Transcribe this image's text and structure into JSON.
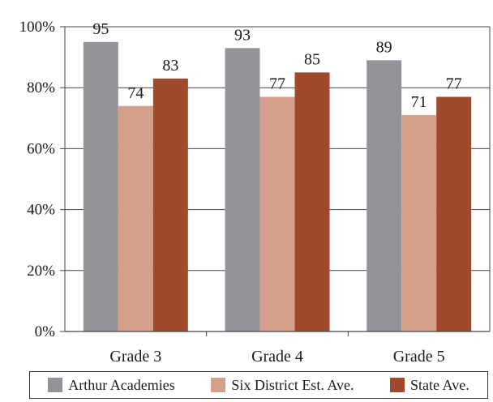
{
  "chart_data": {
    "type": "bar",
    "categories": [
      "Grade 3",
      "Grade 4",
      "Grade 5"
    ],
    "series": [
      {
        "name": "Arthur Academies",
        "values": [
          95,
          93,
          89
        ],
        "color": "#939497"
      },
      {
        "name": "Six District Est. Ave.",
        "values": [
          74,
          77,
          71
        ],
        "color": "#d4a089"
      },
      {
        "name": "State Ave.",
        "values": [
          83,
          85,
          77
        ],
        "color": "#a0492c"
      }
    ],
    "y_ticks": [
      "0%",
      "20%",
      "40%",
      "60%",
      "80%",
      "100%"
    ],
    "ylim": [
      0,
      100
    ],
    "grid": true,
    "legend_position": "bottom",
    "title": "",
    "xlabel": "",
    "ylabel": ""
  }
}
